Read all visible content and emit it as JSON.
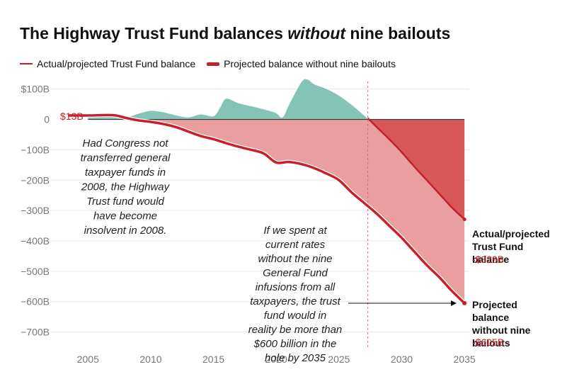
{
  "title_part1": "The Highway Trust Fund balances ",
  "title_emph": "without",
  "title_part2": " nine bailouts",
  "legend": {
    "actual": "Actual/projected Trust Fund balance",
    "without": "Projected balance without nine bailouts"
  },
  "colors": {
    "red": "#c8202a",
    "teal": "#84c3b6",
    "pink": "#e89a9a",
    "darkred": "#d55050"
  },
  "chart_data": {
    "type": "area",
    "title": "The Highway Trust Fund balances without nine bailouts",
    "xlabel": "",
    "ylabel": "",
    "xlim": [
      2002.5,
      2035.5
    ],
    "ylim": [
      -750,
      125
    ],
    "x_ticks": [
      2005,
      2010,
      2015,
      2020,
      2025,
      2030,
      2035
    ],
    "x_tick_labels": [
      "2005",
      "2010",
      "2015",
      "2020",
      "2025",
      "2030",
      "2035"
    ],
    "y_ticks": [
      100,
      0,
      -100,
      -200,
      -300,
      -400,
      -500,
      -600,
      -700
    ],
    "y_tick_labels": [
      "$100B",
      "0",
      "−100B",
      "−200B",
      "−300B",
      "−400B",
      "−500B",
      "−600B",
      "−700B"
    ],
    "projection_start": 2027.3,
    "series": [
      {
        "name": "Actual/projected Trust Fund balance",
        "x": [
          2005,
          2006,
          2007,
          2008,
          2009,
          2010,
          2011,
          2012,
          2013,
          2014,
          2015,
          2015.5,
          2016,
          2017,
          2018,
          2019,
          2020,
          2020.5,
          2021,
          2022,
          2022.5,
          2023,
          2024,
          2025,
          2026,
          2027,
          2027.4,
          2028,
          2029,
          2030,
          2031,
          2032,
          2033,
          2034,
          2035
        ],
        "values": [
          13,
          14,
          14,
          8,
          20,
          30,
          25,
          15,
          8,
          18,
          12,
          40,
          70,
          55,
          45,
          35,
          22,
          8,
          50,
          125,
          133,
          118,
          102,
          80,
          50,
          15,
          0,
          -25,
          -65,
          -108,
          -155,
          -200,
          -245,
          -290,
          -329
        ]
      },
      {
        "name": "Projected balance without nine bailouts",
        "x": [
          2003.5,
          2005,
          2007,
          2008,
          2009,
          2010,
          2011,
          2012,
          2013,
          2014,
          2015,
          2016,
          2017,
          2018,
          2019,
          2020,
          2021,
          2022,
          2023,
          2024,
          2025,
          2026,
          2027,
          2028,
          2029,
          2030,
          2031,
          2032,
          2033,
          2034,
          2035
        ],
        "values": [
          13,
          13,
          14,
          5,
          -3,
          -8,
          -15,
          -25,
          -40,
          -55,
          -65,
          -78,
          -90,
          -100,
          -112,
          -142,
          -140,
          -147,
          -160,
          -178,
          -200,
          -240,
          -275,
          -310,
          -350,
          -390,
          -435,
          -480,
          -520,
          -565,
          -605
        ]
      }
    ],
    "annotations": {
      "start_label": "$13B",
      "note_2008": "Had Congress not transferred general taxpayer funds in 2008, the Highway Trust fund would have become insolvent in 2008.",
      "note_2035": "If we spent at current rates without the nine General Fund infusions from all taxpayers, the trust fund would in reality be more than $600 billion in the hole by 2035",
      "end_actual_label": "Actual/projected Trust Fund balance",
      "end_actual_value": "-$329B",
      "end_without_label": "Projected balance without nine bailouts",
      "end_without_value": "-$605B"
    }
  }
}
